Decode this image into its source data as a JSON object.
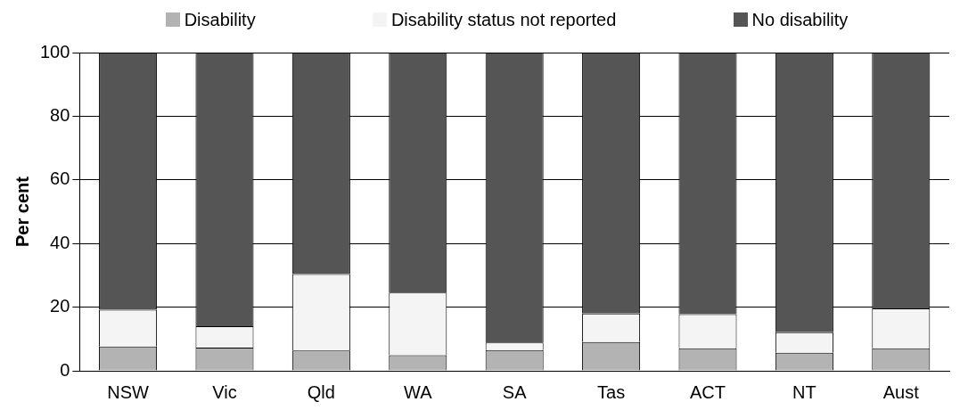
{
  "chart_data": {
    "type": "bar",
    "stacked": true,
    "ylabel": "Per cent",
    "categories": [
      "NSW",
      "Vic",
      "Qld",
      "WA",
      "SA",
      "Tas",
      "ACT",
      "NT",
      "Aust"
    ],
    "series": [
      {
        "name": "Disability",
        "color": "#b3b3b3",
        "values": [
          7.6,
          7.3,
          6.4,
          4.9,
          6.5,
          9.0,
          7.1,
          5.7,
          7.1
        ]
      },
      {
        "name": "Disability status not reported",
        "color": "#f4f4f4",
        "values": [
          11.6,
          6.7,
          24.0,
          19.7,
          2.4,
          9.0,
          10.7,
          6.4,
          12.5
        ]
      },
      {
        "name": "No disability",
        "color": "#555555",
        "values": [
          80.8,
          86.0,
          69.6,
          75.4,
          91.1,
          82.0,
          82.2,
          87.9,
          80.4
        ]
      }
    ],
    "ylim": [
      0,
      100
    ],
    "yticks": [
      0,
      20,
      40,
      60,
      80,
      100
    ],
    "grid": "y",
    "legend": "top"
  }
}
